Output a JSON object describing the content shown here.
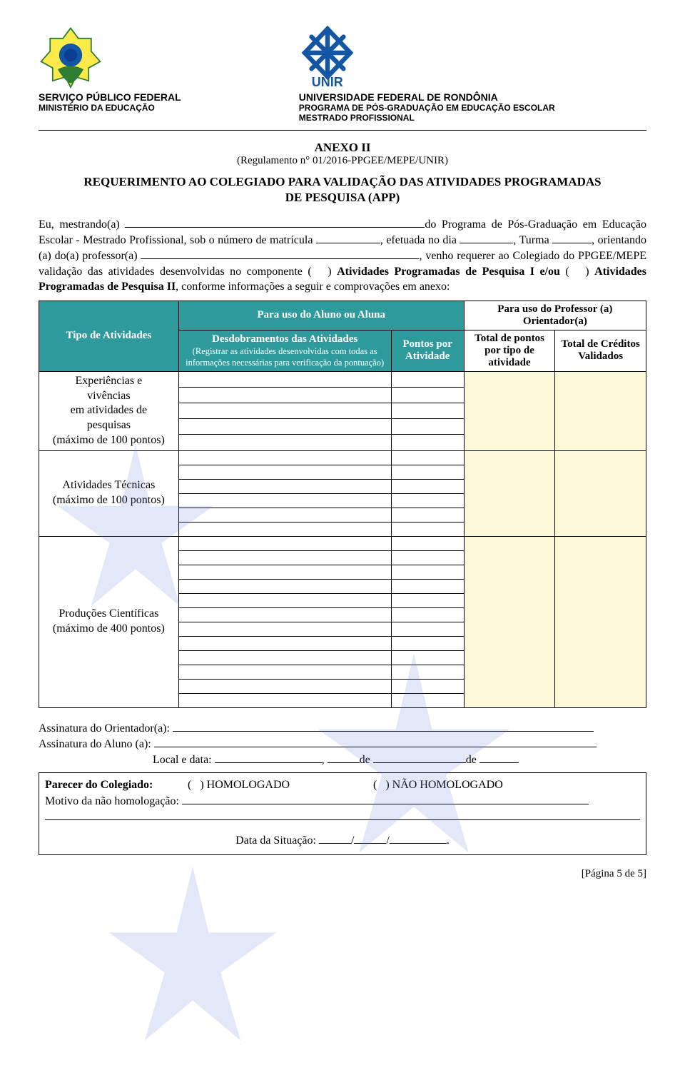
{
  "header": {
    "left_line1": "SERVIÇO PÚBLICO FEDERAL",
    "left_line2": "MINISTÉRIO DA EDUCAÇÃO",
    "right_line1": "UNIVERSIDADE FEDERAL DE RONDÔNIA",
    "right_line2": "PROGRAMA DE PÓS-GRADUAÇÃO EM EDUCAÇÃO ESCOLAR",
    "right_line3": "MESTRADO PROFISSIONAL",
    "unir_label": "UNIR"
  },
  "title": {
    "anexo": "ANEXO II",
    "regulamento": "(Regulamento n° 01/2016-PPGEE/MEPE/UNIR)",
    "main_l1": "REQUERIMENTO AO COLEGIADO PARA VALIDAÇÃO DAS ATIVIDADES PROGRAMADAS",
    "main_l2": "DE PESQUISA (APP)"
  },
  "paragraph_parts": {
    "p1a": "Eu, mestrando(a) ",
    "p1b": "do Programa de Pós-Graduação em Educação Escolar - Mestrado Profissional, sob o número de matrícula ",
    "p1c": ", efetuada no dia ",
    "p1d": ", Turma ",
    "p1e": ", orientando (a) do(a) professor(a) ",
    "p1f": ", venho requerer ao Colegiado do PPGEE/MEPE validação das atividades desenvolvidas no componente (   ) ",
    "p1g_bold": "Atividades Programadas de Pesquisa I e/ou",
    "p1h": " (   ) ",
    "p1i_bold": "Atividades Programadas de Pesquisa II",
    "p1j": ", conforme informações a seguir e comprovações em anexo:"
  },
  "table": {
    "th_aluno": "Para uso do Aluno ou Aluna",
    "th_prof": "Para uso do Professor (a) Orientador(a)",
    "th_tipo": "Tipo de Atividades",
    "th_desd_main": "Desdobramentos das Atividades",
    "th_desd_sub": "(Registrar as atividades desenvolvidas com todas as informações necessárias para verificação da pontuação)",
    "th_pontos_ativ": "Pontos por Atividade",
    "th_total_pontos": "Total de pontos por tipo de atividade",
    "th_total_cred": "Total de Créditos Validados",
    "row_types": [
      {
        "label": "Experiências e\nvivências\nem atividades de\npesquisas\n(máximo de 100 pontos)",
        "rows": 5
      },
      {
        "label": "Atividades Técnicas\n(máximo de 100 pontos)",
        "rows": 6
      },
      {
        "label": "Produções Científicas\n(máximo de 400 pontos)",
        "rows": 12
      }
    ]
  },
  "signatures": {
    "orientador": "Assinatura do Orientador(a): ",
    "aluno": "Assinatura do Aluno (a): ",
    "local_data_a": "Local e data: ",
    "local_data_b": ", ",
    "local_data_c": "de ",
    "local_data_d": "de "
  },
  "parecer": {
    "label": "Parecer do Colegiado:",
    "opt1": "(   ) HOMOLOGADO",
    "opt2": "(   ) NÃO HOMOLOGADO",
    "motivo": "Motivo da não homologação: ",
    "data_sit": "Data da Situação: ",
    "slash": "/",
    "dot": "."
  },
  "footer": "[Página 5 de 5]",
  "colors": {
    "teal": "#2f9a9c",
    "yellow": "#fef9d8",
    "watermark_blue": "#6b7fd7"
  }
}
